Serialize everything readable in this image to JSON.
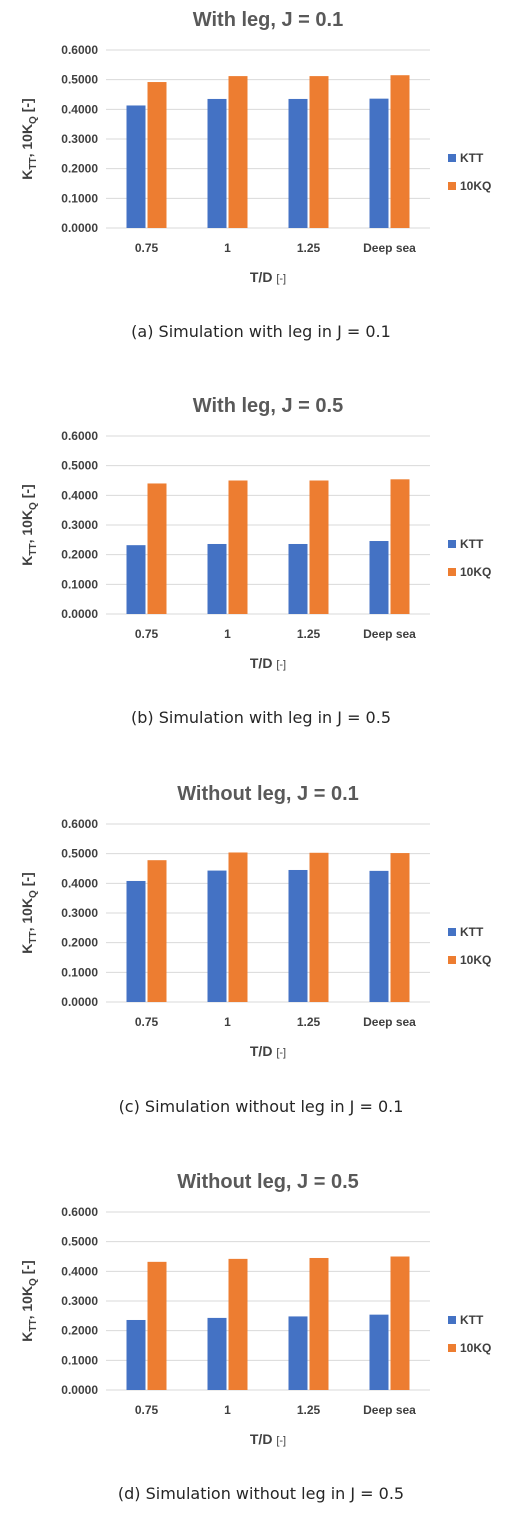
{
  "chart_data": [
    {
      "type": "bar",
      "title": "With leg, J = 0.1",
      "xlabel": "T/D",
      "xlabel_unit": "[-]",
      "ylabel": "K",
      "ylabel_sub1": "TT",
      "ylabel_mid": ", 10K",
      "ylabel_sub2": "Q",
      "ylabel_unit": " [-]",
      "categories": [
        "0.75",
        "1",
        "1.25",
        "Deep sea"
      ],
      "series": [
        {
          "name": "KTT",
          "values": [
            0.413,
            0.435,
            0.435,
            0.436
          ]
        },
        {
          "name": "10KQ",
          "values": [
            0.492,
            0.512,
            0.512,
            0.515
          ]
        }
      ],
      "ylim": [
        0,
        0.6
      ],
      "yticks": [
        "0.0000",
        "0.1000",
        "0.2000",
        "0.3000",
        "0.4000",
        "0.5000",
        "0.6000"
      ],
      "grid": true,
      "legend_position": "right",
      "caption": "(a) Simulation with leg in J = 0.1"
    },
    {
      "type": "bar",
      "title": "With leg, J = 0.5",
      "xlabel": "T/D",
      "xlabel_unit": "[-]",
      "ylabel": "K",
      "ylabel_sub1": "TT",
      "ylabel_mid": ", 10K",
      "ylabel_sub2": "Q",
      "ylabel_unit": " [-]",
      "categories": [
        "0.75",
        "1",
        "1.25",
        "Deep sea"
      ],
      "series": [
        {
          "name": "KTT",
          "values": [
            0.232,
            0.236,
            0.236,
            0.246
          ]
        },
        {
          "name": "10KQ",
          "values": [
            0.44,
            0.45,
            0.45,
            0.454
          ]
        }
      ],
      "ylim": [
        0,
        0.6
      ],
      "yticks": [
        "0.0000",
        "0.1000",
        "0.2000",
        "0.3000",
        "0.4000",
        "0.5000",
        "0.6000"
      ],
      "grid": true,
      "legend_position": "right",
      "caption": "(b) Simulation with leg in J = 0.5"
    },
    {
      "type": "bar",
      "title": "Without leg, J = 0.1",
      "xlabel": "T/D",
      "xlabel_unit": "[-]",
      "ylabel": "K",
      "ylabel_sub1": "TT",
      "ylabel_mid": ", 10K",
      "ylabel_sub2": "Q",
      "ylabel_unit": " [-]",
      "categories": [
        "0.75",
        "1",
        "1.25",
        "Deep sea"
      ],
      "series": [
        {
          "name": "KTT",
          "values": [
            0.408,
            0.443,
            0.445,
            0.442
          ]
        },
        {
          "name": "10KQ",
          "values": [
            0.478,
            0.504,
            0.503,
            0.502
          ]
        }
      ],
      "ylim": [
        0,
        0.6
      ],
      "yticks": [
        "0.0000",
        "0.1000",
        "0.2000",
        "0.3000",
        "0.4000",
        "0.5000",
        "0.6000"
      ],
      "grid": true,
      "legend_position": "right",
      "caption": "(c) Simulation without leg in J = 0.1"
    },
    {
      "type": "bar",
      "title": "Without leg, J = 0.5",
      "xlabel": "T/D",
      "xlabel_unit": "[-]",
      "ylabel": "K",
      "ylabel_sub1": "TT",
      "ylabel_mid": ", 10K",
      "ylabel_sub2": "Q",
      "ylabel_unit": " [-]",
      "categories": [
        "0.75",
        "1",
        "1.25",
        "Deep sea"
      ],
      "series": [
        {
          "name": "KTT",
          "values": [
            0.236,
            0.243,
            0.248,
            0.254
          ]
        },
        {
          "name": "10KQ",
          "values": [
            0.432,
            0.442,
            0.445,
            0.45
          ]
        }
      ],
      "ylim": [
        0,
        0.6
      ],
      "yticks": [
        "0.0000",
        "0.1000",
        "0.2000",
        "0.3000",
        "0.4000",
        "0.5000",
        "0.6000"
      ],
      "grid": true,
      "legend_position": "right",
      "caption": "(d) Simulation without leg in J = 0.5"
    }
  ],
  "colors": {
    "KTT": "#4472C4",
    "10KQ": "#ED7D31",
    "grid": "#D9D9D9"
  }
}
